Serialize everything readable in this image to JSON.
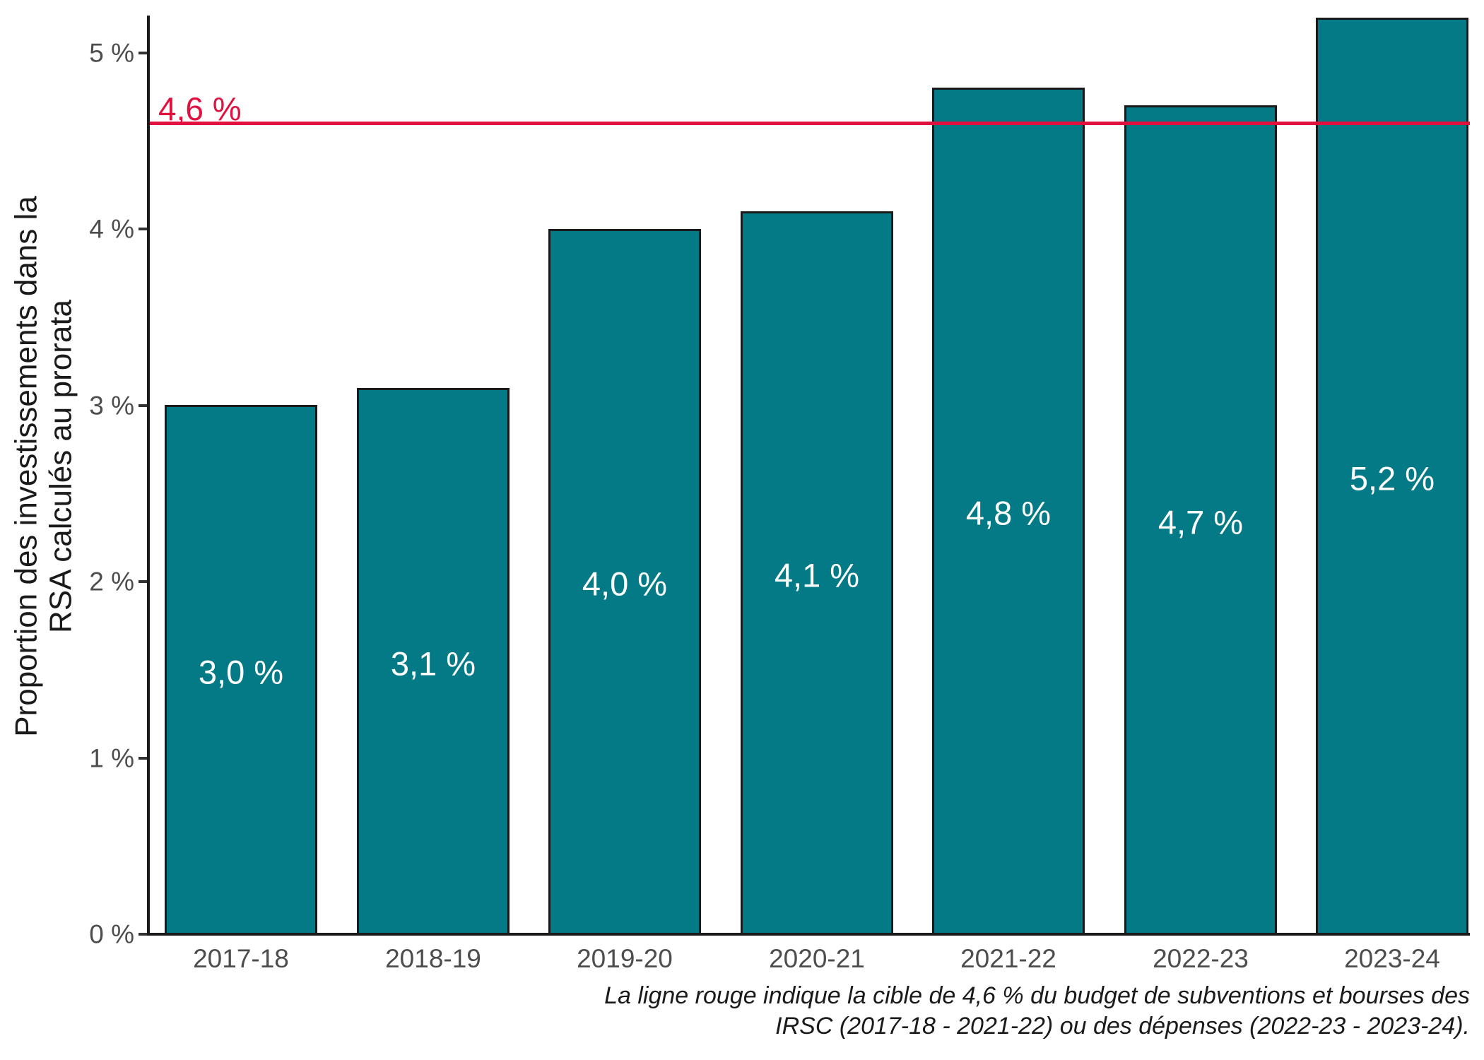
{
  "chart_data": {
    "type": "bar",
    "categories": [
      "2017-18",
      "2018-19",
      "2019-20",
      "2020-21",
      "2021-22",
      "2022-23",
      "2023-24"
    ],
    "values": [
      3.0,
      3.1,
      4.0,
      4.1,
      4.8,
      4.7,
      5.2
    ],
    "bar_labels": [
      "3,0 %",
      "3,1 %",
      "4,0 %",
      "4,1 %",
      "4,8 %",
      "4,7 %",
      "5,2 %"
    ],
    "title": "",
    "xlabel": "",
    "ylabel": "Proportion des investissements dans la RSA calculés au prorata",
    "ylabel_lines": [
      "Proportion des investissements dans la",
      "RSA calculés au prorata"
    ],
    "ylim": [
      0,
      5.2
    ],
    "yticks": {
      "values": [
        0,
        1,
        2,
        3,
        4,
        5
      ],
      "labels": [
        "0 %",
        "1 %",
        "2 %",
        "3 %",
        "4 %",
        "5 %"
      ]
    },
    "target_line": {
      "value": 4.6,
      "label": "4,6 %",
      "color": "#E0103F"
    },
    "caption_lines": [
      "La ligne rouge indique la cible de 4,6 % du budget de subventions et bourses des",
      "IRSC (2017-18 - 2021-22) ou des dépenses (2022-23 - 2023-24)."
    ],
    "grid": false,
    "legend_position": "none",
    "colors": {
      "bar_fill": "#057A87",
      "bar_border": "#1A1A1A",
      "bar_label_text": "#FFFFFF",
      "axis_text": "#4D4D4D",
      "axis_line": "#1A1A1A",
      "target_red": "#E0103F",
      "background": "#FFFFFF"
    }
  }
}
